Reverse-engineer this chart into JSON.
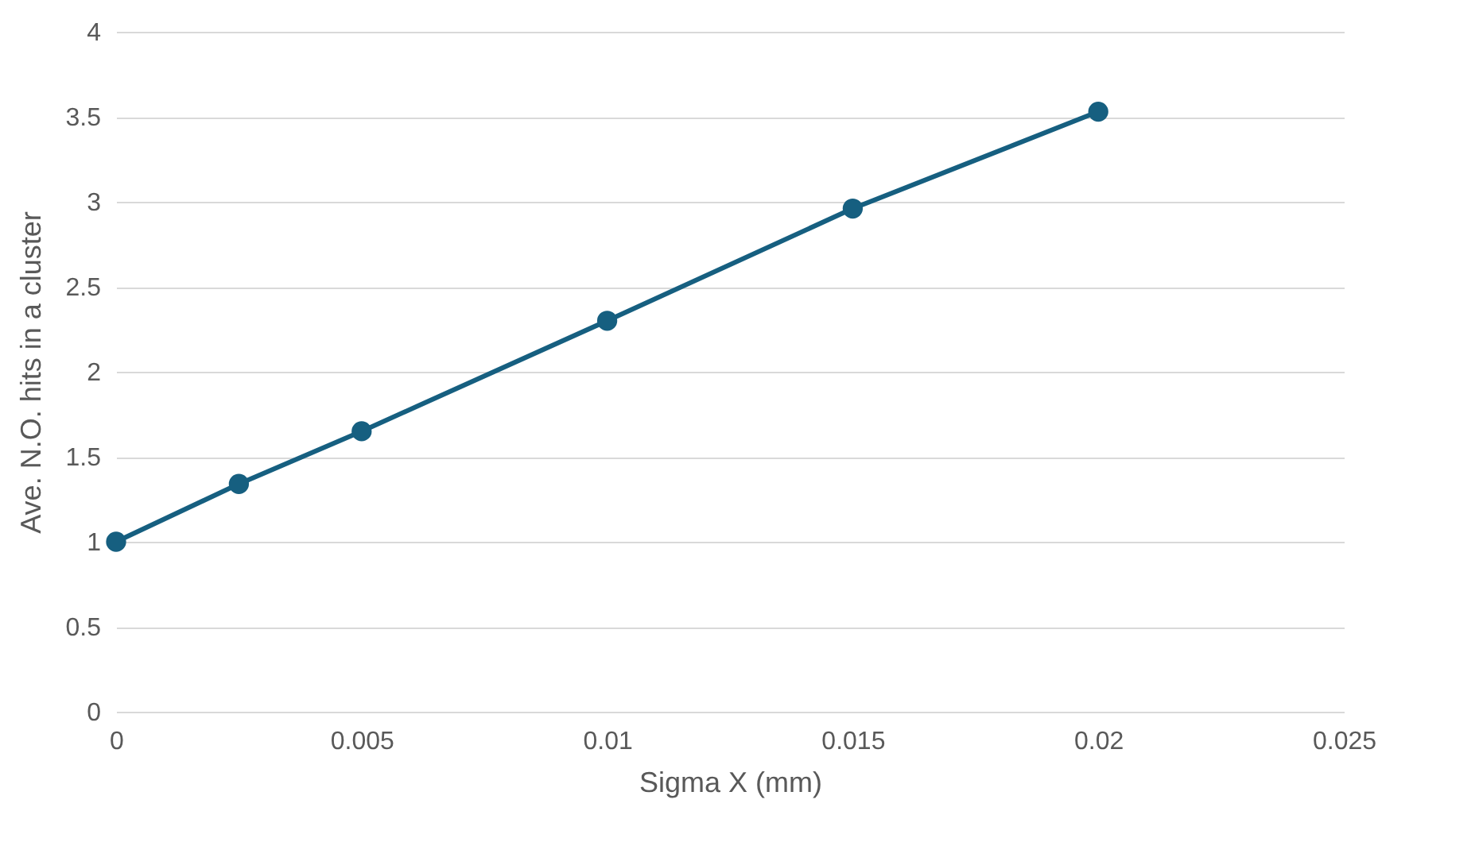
{
  "chart_data": {
    "type": "line",
    "xlabel": "Sigma X (mm)",
    "ylabel": "Ave. N.O. hits in a cluster",
    "x": [
      0,
      0.0025,
      0.005,
      0.01,
      0.015,
      0.02
    ],
    "series": [
      {
        "color": "#165f80",
        "values": [
          1.0,
          1.34,
          1.65,
          2.3,
          2.96,
          3.53
        ]
      }
    ],
    "xlim": [
      0,
      0.025
    ],
    "xticks": [
      0,
      0.005,
      0.01,
      0.015,
      0.02,
      0.025
    ],
    "ylim": [
      0,
      4
    ],
    "yticks": [
      0,
      0.5,
      1,
      1.5,
      2,
      2.5,
      3,
      3.5,
      4
    ],
    "grid": "y",
    "marker": "circle",
    "line_style": "solid"
  }
}
